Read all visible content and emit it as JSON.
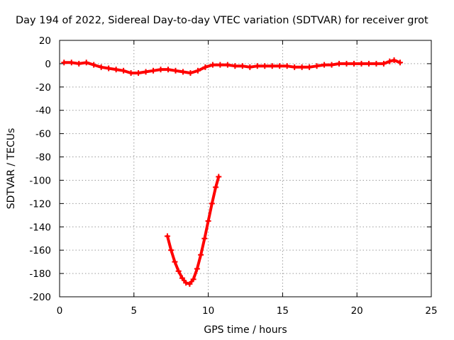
{
  "chart_data": {
    "type": "scatter",
    "title": "Day 194 of 2022, Sidereal Day-to-day VTEC variation (SDTVAR) for receiver grot",
    "xlabel": "GPS time / hours",
    "ylabel": "SDTVAR / TECUs",
    "xlim": [
      0,
      25
    ],
    "ylim": [
      -200,
      20
    ],
    "xticks": [
      0,
      5,
      10,
      15,
      20,
      25
    ],
    "yticks": [
      20,
      0,
      -20,
      -40,
      -60,
      -80,
      -100,
      -120,
      -140,
      -160,
      -180,
      -200
    ],
    "grid": true,
    "marker_color": "#ff0000",
    "series": [
      {
        "name": "baseline",
        "points": [
          [
            0.3,
            1
          ],
          [
            0.8,
            1
          ],
          [
            1.3,
            0
          ],
          [
            1.8,
            1
          ],
          [
            2.3,
            -1
          ],
          [
            2.8,
            -3
          ],
          [
            3.3,
            -4
          ],
          [
            3.8,
            -5
          ],
          [
            4.3,
            -6
          ],
          [
            4.8,
            -8
          ],
          [
            5.3,
            -8
          ],
          [
            5.8,
            -7
          ],
          [
            6.3,
            -6
          ],
          [
            6.8,
            -5
          ],
          [
            7.3,
            -5
          ],
          [
            7.8,
            -6
          ],
          [
            8.3,
            -7
          ],
          [
            8.8,
            -8
          ],
          [
            9.3,
            -6
          ],
          [
            9.8,
            -3
          ],
          [
            10.3,
            -1
          ],
          [
            10.8,
            -1
          ],
          [
            11.3,
            -1
          ],
          [
            11.8,
            -2
          ],
          [
            12.3,
            -2
          ],
          [
            12.8,
            -3
          ],
          [
            13.3,
            -2
          ],
          [
            13.8,
            -2
          ],
          [
            14.3,
            -2
          ],
          [
            14.8,
            -2
          ],
          [
            15.3,
            -2
          ],
          [
            15.8,
            -3
          ],
          [
            16.3,
            -3
          ],
          [
            16.8,
            -3
          ],
          [
            17.3,
            -2
          ],
          [
            17.8,
            -1
          ],
          [
            18.3,
            -1
          ],
          [
            18.8,
            0
          ],
          [
            19.3,
            0
          ],
          [
            19.8,
            0
          ],
          [
            20.3,
            0
          ],
          [
            20.8,
            0
          ],
          [
            21.3,
            0
          ],
          [
            21.8,
            0
          ],
          [
            22.2,
            2
          ],
          [
            22.5,
            3
          ],
          [
            22.9,
            1
          ]
        ]
      },
      {
        "name": "dip",
        "points": [
          [
            7.25,
            -148
          ],
          [
            7.5,
            -160
          ],
          [
            7.75,
            -170
          ],
          [
            8.0,
            -178
          ],
          [
            8.25,
            -184
          ],
          [
            8.5,
            -188
          ],
          [
            8.75,
            -189
          ],
          [
            9.0,
            -185
          ],
          [
            9.25,
            -176
          ],
          [
            9.5,
            -164
          ],
          [
            9.75,
            -150
          ],
          [
            10.0,
            -135
          ],
          [
            10.25,
            -120
          ],
          [
            10.5,
            -106
          ],
          [
            10.7,
            -97
          ]
        ]
      }
    ]
  }
}
